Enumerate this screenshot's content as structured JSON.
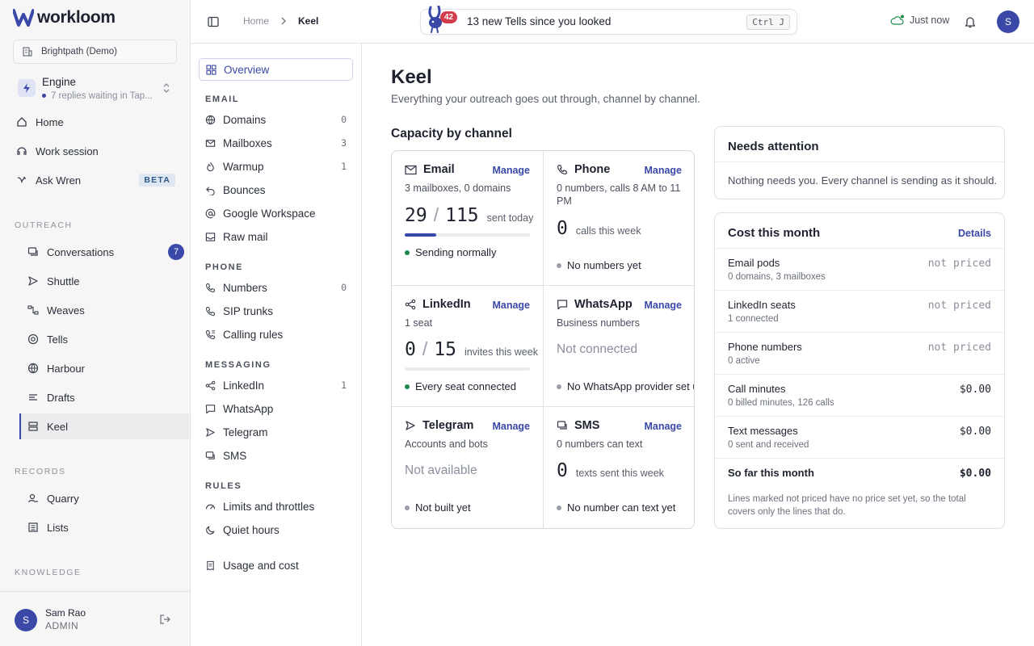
{
  "app": {
    "logo_text": "workloom",
    "org": "Brightpath (Demo)"
  },
  "engine": {
    "title": "Engine",
    "subtitle": "7 replies waiting in Tap..."
  },
  "top_nav": [
    {
      "label": "Home",
      "icon": "home-icon"
    },
    {
      "label": "Work session",
      "icon": "session-icon"
    },
    {
      "label": "Ask Wren",
      "icon": "wren-icon",
      "badge": "BETA"
    }
  ],
  "sections": {
    "outreach": "OUTREACH",
    "records": "RECORDS",
    "knowledge": "KNOWLEDGE"
  },
  "outreach_items": [
    {
      "label": "Conversations",
      "count": "7"
    },
    {
      "label": "Shuttle"
    },
    {
      "label": "Weaves"
    },
    {
      "label": "Tells"
    },
    {
      "label": "Harbour"
    },
    {
      "label": "Drafts"
    },
    {
      "label": "Keel",
      "active": true
    }
  ],
  "records_items": [
    {
      "label": "Quarry"
    },
    {
      "label": "Lists"
    }
  ],
  "user": {
    "initial": "S",
    "name": "Sam Rao",
    "role": "ADMIN"
  },
  "breadcrumb": {
    "home": "Home",
    "current": "Keel"
  },
  "tells_bar": {
    "badge": "42",
    "text": "13 new Tells since you looked",
    "shortcut": "Ctrl J"
  },
  "sync_status": "Just now",
  "top_avatar": "S",
  "subnav": {
    "overview": "Overview",
    "email_label": "EMAIL",
    "email": [
      {
        "label": "Domains",
        "count": "0"
      },
      {
        "label": "Mailboxes",
        "count": "3"
      },
      {
        "label": "Warmup",
        "count": "1"
      },
      {
        "label": "Bounces"
      },
      {
        "label": "Google Workspace"
      },
      {
        "label": "Raw mail"
      }
    ],
    "phone_label": "PHONE",
    "phone": [
      {
        "label": "Numbers",
        "count": "0"
      },
      {
        "label": "SIP trunks"
      },
      {
        "label": "Calling rules"
      }
    ],
    "messaging_label": "MESSAGING",
    "messaging": [
      {
        "label": "LinkedIn",
        "count": "1"
      },
      {
        "label": "WhatsApp"
      },
      {
        "label": "Telegram"
      },
      {
        "label": "SMS"
      }
    ],
    "rules_label": "RULES",
    "rules": [
      {
        "label": "Limits and throttles"
      },
      {
        "label": "Quiet hours"
      }
    ],
    "usage": "Usage and cost"
  },
  "main": {
    "title": "Keel",
    "subtitle": "Everything your outreach goes out through, channel by channel.",
    "capacity_title": "Capacity by channel"
  },
  "channels": {
    "email": {
      "name": "Email",
      "manage": "Manage",
      "sub": "3 mailboxes, 0 domains",
      "num": "29",
      "total": "115",
      "unit": "sent today",
      "progress": 0.25,
      "status": "Sending normally"
    },
    "phone": {
      "name": "Phone",
      "manage": "Manage",
      "sub": "0 numbers, calls 8 AM to 11 PM",
      "num": "0",
      "unit": "calls this week",
      "status": "No numbers yet"
    },
    "linkedin": {
      "name": "LinkedIn",
      "manage": "Manage",
      "sub": "1 seat",
      "num": "0",
      "total": "15",
      "unit": "invites this week",
      "progress": 0,
      "status": "Every seat connected"
    },
    "whatsapp": {
      "name": "WhatsApp",
      "manage": "Manage",
      "sub": "Business numbers",
      "state": "Not connected",
      "status": "No WhatsApp provider set up"
    },
    "telegram": {
      "name": "Telegram",
      "manage": "Manage",
      "sub": "Accounts and bots",
      "state": "Not available",
      "status": "Not built yet"
    },
    "sms": {
      "name": "SMS",
      "manage": "Manage",
      "sub": "0 numbers can text",
      "num": "0",
      "unit": "texts sent this week",
      "status": "No number can text yet"
    }
  },
  "attention": {
    "title": "Needs attention",
    "text": "Nothing needs you. Every channel is sending as it should."
  },
  "cost": {
    "title": "Cost this month",
    "details": "Details",
    "rows": [
      {
        "label": "Email pods",
        "sub": "0 domains, 3 mailboxes",
        "value": "not priced"
      },
      {
        "label": "LinkedIn seats",
        "sub": "1 connected",
        "value": "not priced"
      },
      {
        "label": "Phone numbers",
        "sub": "0 active",
        "value": "not priced"
      },
      {
        "label": "Call minutes",
        "sub": "0 billed minutes, 126 calls",
        "value": "$0.00"
      },
      {
        "label": "Text messages",
        "sub": "0 sent and received",
        "value": "$0.00"
      }
    ],
    "total_label": "So far this month",
    "total_value": "$0.00",
    "footnote": "Lines marked not priced have no price set yet, so the total covers only the lines that do."
  },
  "colors": {
    "accent": "#3a48a8",
    "status_ok": "#1f8a4c",
    "status_idle": "#9a9ea8",
    "badge_red": "#d23d4b"
  }
}
